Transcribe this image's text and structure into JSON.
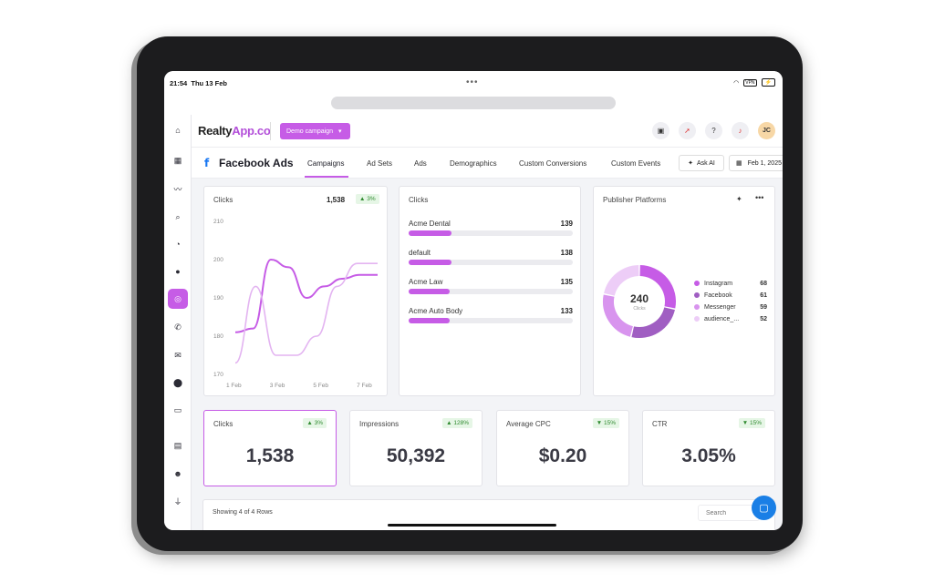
{
  "status": {
    "time": "21:54",
    "date": "Thu 13 Feb",
    "vpn": "VPN"
  },
  "logo": {
    "name": "Realty",
    "accent": "App.co"
  },
  "campaign_selector": {
    "label": "Demo campaign"
  },
  "header": {
    "avatar_initials": "JC"
  },
  "page": {
    "title": "Facebook Ads"
  },
  "tabs": [
    {
      "label": "Campaigns",
      "active": true
    },
    {
      "label": "Ad Sets"
    },
    {
      "label": "Ads"
    },
    {
      "label": "Demographics"
    },
    {
      "label": "Custom Conversions"
    },
    {
      "label": "Custom Events"
    }
  ],
  "actions": {
    "ask_ai": "Ask AI",
    "date": "Feb 1, 2025"
  },
  "line_card": {
    "title": "Clicks",
    "total": "1,538",
    "change": "▲ 3%"
  },
  "chart_data": {
    "type": "line",
    "x_ticks": [
      "1 Feb",
      "3 Feb",
      "5 Feb",
      "7 Feb"
    ],
    "ylim": [
      170,
      210
    ],
    "y_ticks": [
      170,
      180,
      190,
      200,
      210
    ],
    "series": [
      {
        "values": [
          181,
          182,
          200,
          198,
          190,
          193,
          195,
          196,
          196
        ]
      },
      {
        "values": [
          173,
          193,
          175,
          175,
          180,
          193,
          199,
          199
        ]
      }
    ],
    "colors": [
      "#c65ce6",
      "#e3b4f1"
    ]
  },
  "bars_card": {
    "title": "Clicks",
    "rows": [
      {
        "label": "Acme Dental",
        "value": "139",
        "fraction": 0.26
      },
      {
        "label": "default",
        "value": "138",
        "fraction": 0.26
      },
      {
        "label": "Acme Law",
        "value": "135",
        "fraction": 0.25
      },
      {
        "label": "Acme Auto Body",
        "value": "133",
        "fraction": 0.25
      }
    ]
  },
  "donut_card": {
    "title": "Publisher Platforms",
    "center_value": "240",
    "center_label": "Clicks",
    "legend": [
      {
        "label": "Instagram",
        "value": "68",
        "color": "#c65ce6"
      },
      {
        "label": "Facebook",
        "value": "61",
        "color": "#a05ec2"
      },
      {
        "label": "Messenger",
        "value": "59",
        "color": "#d894ee"
      },
      {
        "label": "audience_...",
        "value": "52",
        "color": "#edcdf7"
      }
    ]
  },
  "kpis": [
    {
      "label": "Clicks",
      "value": "1,538",
      "change": "▲ 3%",
      "selected": true
    },
    {
      "label": "Impressions",
      "value": "50,392",
      "change": "▲ 128%"
    },
    {
      "label": "Average CPC",
      "value": "$0.20",
      "change": "▼ 15%"
    },
    {
      "label": "CTR",
      "value": "3.05%",
      "change": "▼ 15%"
    }
  ],
  "table": {
    "info": "Showing 4 of 4 Rows",
    "search_placeholder": "Search"
  }
}
